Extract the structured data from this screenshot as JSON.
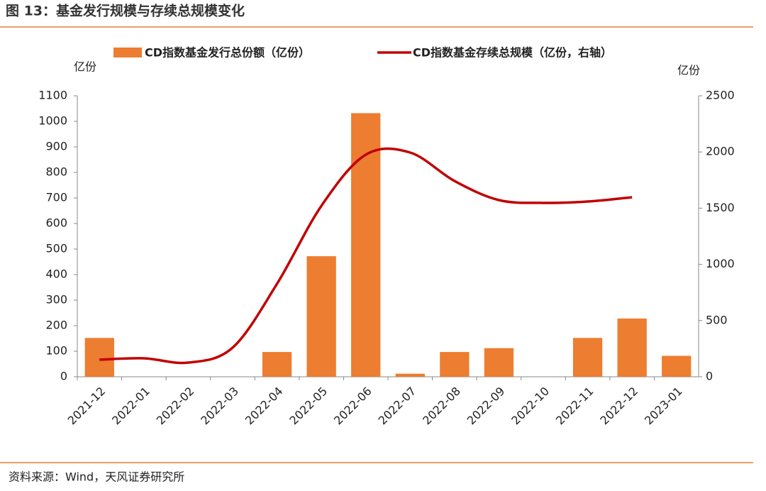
{
  "chart_data": {
    "type": "bar-line",
    "title": "图 13：基金发行规模与存续总规模变化",
    "source": "资料来源：Wind，天风证券研究所",
    "y_label": "亿份",
    "y2_label": "亿份",
    "categories": [
      "2021-12",
      "2022-01",
      "2022-02",
      "2022-03",
      "2022-04",
      "2022-05",
      "2022-06",
      "2022-07",
      "2022-08",
      "2022-09",
      "2022-10",
      "2022-11",
      "2022-12",
      "2023-01"
    ],
    "series": [
      {
        "name": "CD指数基金发行总份额（亿份）",
        "type": "bar",
        "color": "#ed7d31",
        "values": [
          152,
          0,
          0,
          0,
          97,
          472,
          1032,
          12,
          97,
          112,
          0,
          152,
          228,
          82
        ]
      },
      {
        "name": "CD指数基金存续总规模（亿份，右轴）",
        "type": "line",
        "axis": "y2",
        "color": "#c00000",
        "values": [
          152,
          164,
          126,
          259,
          827,
          1521,
          1976,
          1995,
          1742,
          1572,
          1547,
          1559,
          1597,
          null
        ]
      }
    ],
    "ylim": [
      0,
      1100
    ],
    "yticks": [
      0,
      100,
      200,
      300,
      400,
      500,
      600,
      700,
      800,
      900,
      1000,
      1100
    ],
    "y2lim": [
      0,
      2500
    ],
    "y2ticks": [
      0,
      500,
      1000,
      1500,
      2000,
      2500
    ],
    "legend": "top"
  }
}
